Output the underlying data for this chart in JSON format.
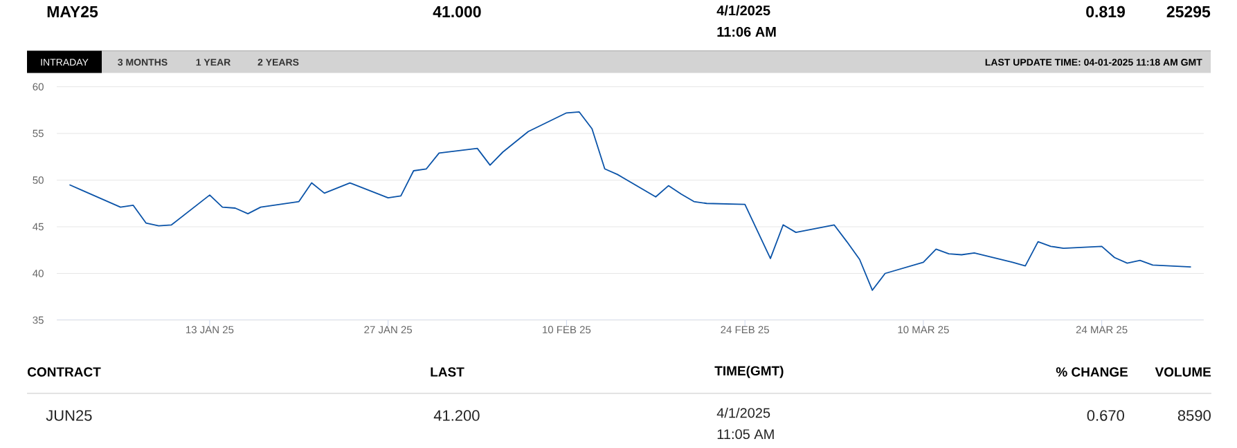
{
  "chart_data": {
    "type": "line",
    "x": [
      "2025-01-02",
      "2025-01-03",
      "2025-01-06",
      "2025-01-07",
      "2025-01-08",
      "2025-01-09",
      "2025-01-10",
      "2025-01-13",
      "2025-01-14",
      "2025-01-15",
      "2025-01-16",
      "2025-01-17",
      "2025-01-20",
      "2025-01-21",
      "2025-01-22",
      "2025-01-24",
      "2025-01-27",
      "2025-01-28",
      "2025-01-29",
      "2025-01-30",
      "2025-01-31",
      "2025-02-03",
      "2025-02-04",
      "2025-02-05",
      "2025-02-07",
      "2025-02-10",
      "2025-02-11",
      "2025-02-12",
      "2025-02-13",
      "2025-02-14",
      "2025-02-17",
      "2025-02-18",
      "2025-02-19",
      "2025-02-20",
      "2025-02-21",
      "2025-02-24",
      "2025-02-26",
      "2025-02-27",
      "2025-02-28",
      "2025-03-03",
      "2025-03-04",
      "2025-03-05",
      "2025-03-06",
      "2025-03-07",
      "2025-03-10",
      "2025-03-11",
      "2025-03-12",
      "2025-03-13",
      "2025-03-14",
      "2025-03-17",
      "2025-03-18",
      "2025-03-19",
      "2025-03-20",
      "2025-03-21",
      "2025-03-24",
      "2025-03-25",
      "2025-03-26",
      "2025-03-27",
      "2025-03-28",
      "2025-03-31"
    ],
    "values": [
      49.5,
      48.9,
      47.1,
      47.3,
      45.4,
      45.1,
      45.2,
      48.4,
      47.1,
      47.0,
      46.4,
      47.1,
      47.7,
      49.7,
      48.6,
      49.7,
      48.1,
      48.3,
      51.0,
      51.2,
      52.9,
      53.4,
      51.6,
      53.0,
      55.2,
      57.2,
      57.3,
      55.5,
      51.2,
      50.6,
      48.2,
      49.4,
      48.5,
      47.7,
      47.5,
      47.4,
      41.6,
      45.2,
      44.4,
      45.2,
      43.4,
      41.5,
      38.2,
      40.0,
      41.2,
      42.6,
      42.1,
      42.0,
      42.2,
      41.2,
      40.8,
      43.4,
      42.9,
      42.7,
      42.9,
      41.7,
      41.1,
      41.4,
      40.9,
      40.7
    ],
    "color": "#0a53a8",
    "xlim": [
      "2025-01-01",
      "2025-04-01"
    ],
    "xticks": [
      {
        "value": "2025-01-13",
        "label": "13 JAN 25"
      },
      {
        "value": "2025-01-27",
        "label": "27 JAN 25"
      },
      {
        "value": "2025-02-10",
        "label": "10 FEB 25"
      },
      {
        "value": "2025-02-24",
        "label": "24 FEB 25"
      },
      {
        "value": "2025-03-10",
        "label": "10 MAR 25"
      },
      {
        "value": "2025-03-24",
        "label": "24 MAR 25"
      }
    ],
    "ylim": [
      35,
      60
    ],
    "yticks": [
      35,
      40,
      45,
      50,
      55,
      60
    ],
    "grid": "y",
    "annotations": [
      "MAY25",
      "41.000",
      "4/1/2025",
      "11:06 AM",
      "0.819",
      "25295",
      "INTRADAY",
      "3 MONTHS",
      "1 YEAR",
      "2 YEARS",
      "LAST UPDATE TIME: 04-01-2025 11:18 AM GMT",
      "CONTRACT",
      "LAST",
      "TIME(GMT)",
      "% CHANGE",
      "VOLUME",
      "JUN25",
      "41.200",
      "4/1/2025",
      "11:05 AM",
      "0.670",
      "8590"
    ]
  }
}
